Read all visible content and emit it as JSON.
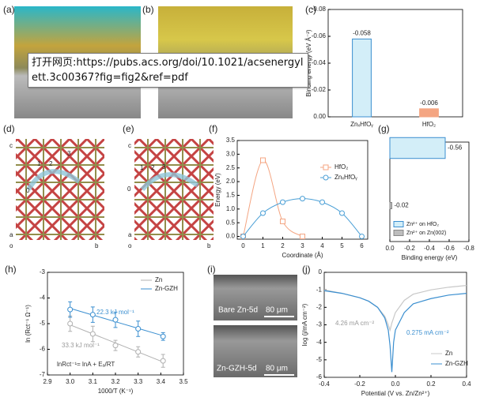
{
  "tooltip": "打开网页:https://pubs.acs.org/doi/10.1021/acsenergylett.3c00367?fig=fig2&ref=pdf",
  "panels": [
    {
      "label": "(a)"
    },
    {
      "label": "(b)"
    },
    {
      "label": "(d)",
      "texts": [
        "c",
        "1",
        "2",
        "3",
        "0",
        "a",
        "o",
        "b"
      ]
    },
    {
      "label": "(e)",
      "texts": [
        "c",
        "1",
        "2",
        "3",
        "0",
        "a",
        "o",
        "b"
      ]
    },
    {
      "label": "(i)",
      "texts": [
        "Bare Zn-5d",
        "80 μm",
        "Zn-GZH-5d",
        "80 μm"
      ]
    }
  ],
  "chart_data": [
    {
      "type": "bar",
      "panel_label": "(c)",
      "y_label": "Binding energy (eV Å⁻²)",
      "categories": [
        "ZnₓHfOᵧ",
        "HfO₂"
      ],
      "values": [
        -0.058,
        -0.006
      ],
      "value_labels": [
        "-0.058",
        "-0.006"
      ],
      "colors": [
        "#d3eef8",
        "#f4a582"
      ],
      "edge_colors": [
        "#3b8fd0",
        "#f4a582"
      ],
      "ylim": [
        0,
        -0.08
      ],
      "yticks": [
        -0.08,
        -0.06,
        -0.04,
        -0.02,
        {
          "value": 0,
          "label": "0.00"
        }
      ],
      "grid": false
    },
    {
      "type": "line",
      "panel_label": "(f)",
      "x_label": "Coordinate (Å)",
      "y_label": "Energy (eV)",
      "series": [
        {
          "name": "HfO₂",
          "color": "#f4a582",
          "marker": "square",
          "x": [
            0,
            1,
            2,
            3
          ],
          "values": [
            0,
            2.78,
            0.55,
            0
          ]
        },
        {
          "name": "ZnₓHfOᵧ",
          "color": "#4a9fd6",
          "marker": "circle",
          "x": [
            0,
            1,
            2,
            3,
            4,
            5,
            6
          ],
          "values": [
            0,
            0.85,
            1.25,
            1.38,
            1.25,
            0.85,
            0
          ]
        }
      ],
      "xlim": [
        -0.3,
        6.3
      ],
      "xticks": [
        0,
        1,
        2,
        3,
        4,
        5,
        6
      ],
      "ylim": [
        -0.1,
        3.5
      ],
      "yticks": [
        {
          "value": 0,
          "label": "0.0"
        },
        0.5,
        {
          "value": 1,
          "label": "1.0"
        },
        1.5,
        {
          "value": 2,
          "label": "2.0"
        },
        2.5,
        {
          "value": 3,
          "label": "3.0"
        },
        3.5
      ],
      "grid": false,
      "legend": "upper right"
    },
    {
      "type": "bar",
      "orientation": "horizontal",
      "panel_label": "(g)",
      "x_label": "Binding energy (eV)",
      "categories": [
        "Zn²⁺ on HfO₂",
        "Zn²⁺ on Zn(002)"
      ],
      "values": [
        -0.56,
        -0.02
      ],
      "value_labels": [
        "-0.56",
        "-0.02"
      ],
      "colors": [
        "#d3eef8",
        "#bdbdbd"
      ],
      "edge_colors": [
        "#3b8fd0",
        "#888888"
      ],
      "xlim": [
        0,
        -0.8
      ],
      "xticks": [
        {
          "value": 0,
          "label": "0.0"
        },
        -0.2,
        -0.4,
        -0.6,
        -0.8
      ],
      "grid": false,
      "legend": "lower left"
    },
    {
      "type": "scatter",
      "panel_label": "(h)",
      "x_label": "1000/T (K⁻¹)",
      "y_label": "ln (Rct⁻¹ Ω⁻¹)",
      "series": [
        {
          "name": "Zn",
          "color": "#b0b0b0",
          "x": [
            3.0,
            3.1,
            3.2,
            3.3,
            3.41
          ],
          "values": [
            -5.0,
            -5.4,
            -5.85,
            -6.1,
            -6.45
          ],
          "errors": [
            0.3,
            0.3,
            0.2,
            0.2,
            0.25
          ]
        },
        {
          "name": "Zn-GZH",
          "color": "#3b8fd0",
          "x": [
            3.0,
            3.1,
            3.2,
            3.3,
            3.41
          ],
          "values": [
            -4.45,
            -4.65,
            -4.85,
            -5.2,
            -5.5
          ],
          "errors": [
            0.3,
            0.3,
            0.3,
            0.3,
            0.15
          ]
        }
      ],
      "annotations": [
        {
          "text": "22.3 kJ mol⁻¹",
          "color": "#3b8fd0"
        },
        {
          "text": "33.3 kJ mol⁻¹",
          "color": "#999999"
        },
        {
          "text": "lnRct⁻¹= lnA + Eₐ/RT",
          "color": "#333333"
        }
      ],
      "xlim": [
        2.9,
        3.5
      ],
      "xticks": [
        2.9,
        {
          "value": 3,
          "label": "3.0"
        },
        3.1,
        3.2,
        3.3,
        3.4,
        3.5
      ],
      "ylim": [
        -7,
        -3
      ],
      "yticks": [
        -7,
        -6,
        -5,
        -4,
        -3
      ],
      "grid": false,
      "legend": "upper right"
    },
    {
      "type": "line",
      "panel_label": "(j)",
      "x_label": "Potential (V vs. Zn/Zn²⁺)",
      "y_label": "log (j/mA cm⁻²)",
      "x": [
        -0.4,
        -0.3,
        -0.2,
        -0.15,
        -0.1,
        -0.06,
        -0.04,
        -0.03,
        -0.02,
        -0.01,
        0,
        0.05,
        0.1,
        0.2,
        0.3,
        0.4
      ],
      "series": [
        {
          "name": "Zn",
          "color": "#c8c8c8",
          "values": [
            -1.0,
            -1.2,
            -1.45,
            -1.65,
            -2.0,
            -2.5,
            -3.0,
            -3.3,
            -2.9,
            -2.6,
            -2.3,
            -1.6,
            -1.25,
            -1.0,
            -0.85,
            -0.75
          ]
        },
        {
          "name": "Zn-GZH",
          "color": "#3b8fd0",
          "values": [
            -1.05,
            -1.2,
            -1.45,
            -1.65,
            -2.0,
            -2.6,
            -3.3,
            -4.2,
            -5.7,
            -4.0,
            -3.3,
            -2.3,
            -1.8,
            -1.5,
            -1.3,
            -1.2
          ]
        }
      ],
      "annotations": [
        {
          "text": "4.26 mA cm⁻²",
          "color": "#999999"
        },
        {
          "text": "0.275 mA cm⁻²",
          "color": "#3b8fd0"
        }
      ],
      "xlim": [
        -0.4,
        0.4
      ],
      "xticks": [
        -0.4,
        -0.2,
        {
          "value": 0,
          "label": "0.0"
        },
        0.2,
        0.4
      ],
      "ylim": [
        -6,
        0
      ],
      "yticks": [
        0,
        -1,
        -2,
        -3,
        -4,
        -5,
        -6
      ],
      "grid": false,
      "legend": "lower right"
    }
  ]
}
